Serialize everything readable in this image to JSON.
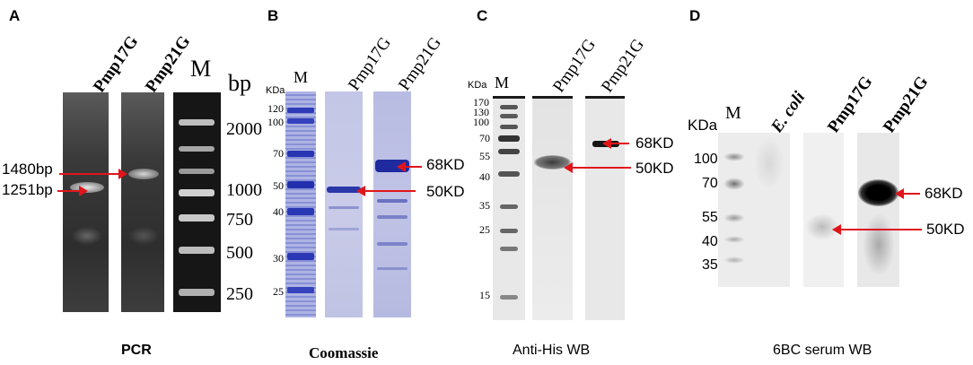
{
  "panels": {
    "a": {
      "letter": "A",
      "lanes": [
        "Pmp17G",
        "Pmp21G",
        "M"
      ],
      "unit": "bp",
      "ticks": [
        "2000",
        "1000",
        "750",
        "500",
        "250"
      ],
      "annotations": [
        "1480bp",
        "1251bp"
      ],
      "caption": "PCR"
    },
    "b": {
      "letter": "B",
      "unit": "KDa",
      "lanes": [
        "M",
        "Pmp17G",
        "Pmp21G"
      ],
      "ticks": [
        "120",
        "100",
        "70",
        "50",
        "40",
        "30",
        "25"
      ],
      "annotations": [
        "68KD",
        "50KD"
      ],
      "caption": "Coomassie"
    },
    "c": {
      "letter": "C",
      "unit": "KDa",
      "lanes": [
        "M",
        "Pmp17G",
        "Pmp21G"
      ],
      "ticks": [
        "170",
        "130",
        "100",
        "70",
        "55",
        "40",
        "35",
        "25",
        "15"
      ],
      "annotations": [
        "68KD",
        "50KD"
      ],
      "caption": "Anti-His WB"
    },
    "d": {
      "letter": "D",
      "unit": "KDa",
      "lanes": [
        "M",
        "E. coli",
        "Pmp17G",
        "Pmp21G"
      ],
      "ticks": [
        "100",
        "70",
        "55",
        "40",
        "35"
      ],
      "annotations": [
        "68KD",
        "50KD"
      ],
      "caption": "6BC serum WB"
    }
  },
  "colors": {
    "arrow": "#e0151b",
    "dna_gel": "#3a3a3a",
    "coomassie": "#c9cbe6",
    "stain": "#3b4fc4"
  }
}
